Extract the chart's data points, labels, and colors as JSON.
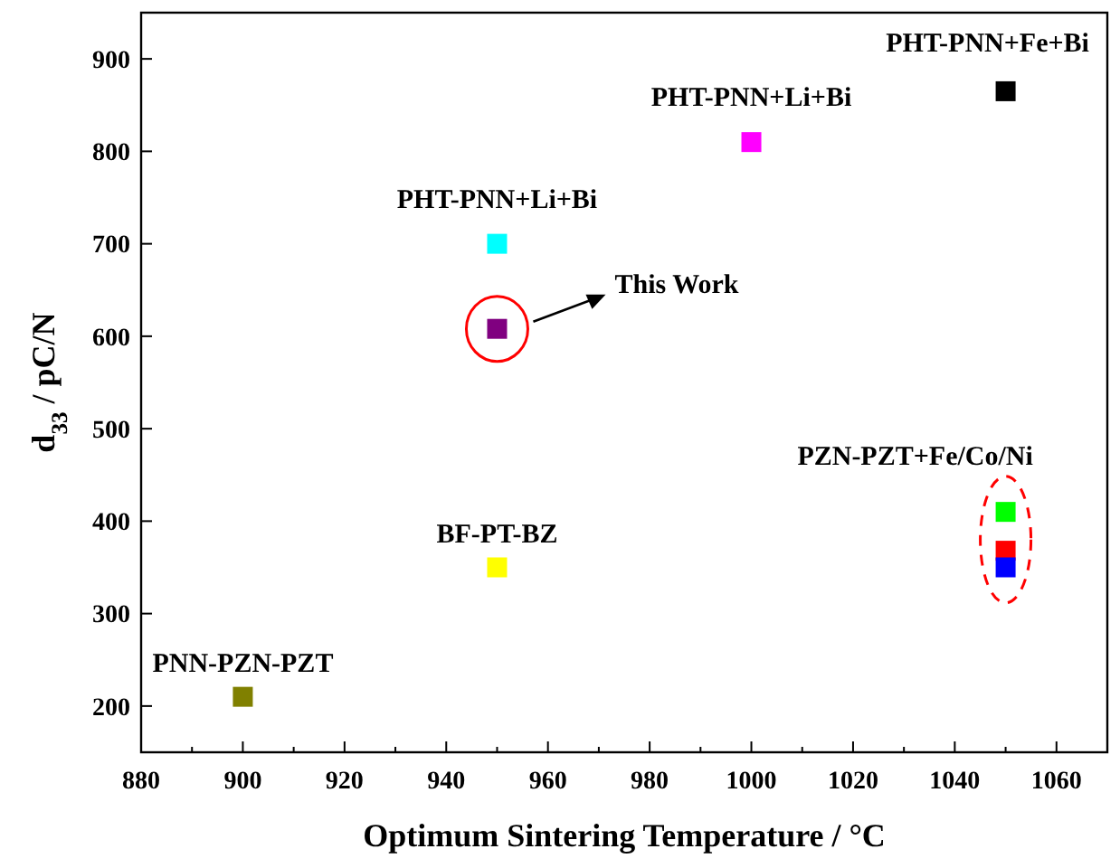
{
  "chart_data": {
    "type": "scatter",
    "xlabel": "Optimum Sintering Temperature / °C",
    "ylabel": "d$_{33}$ / pC/N",
    "x": [
      900,
      950,
      950,
      950,
      1000,
      1050,
      1050,
      1050,
      1050
    ],
    "values": [
      210,
      350,
      608,
      700,
      810,
      865,
      410,
      368,
      350
    ],
    "colors": [
      "#808000",
      "#ffff00",
      "#800080",
      "#00ffff",
      "#ff00ff",
      "#000000",
      "#00ff00",
      "#ff0000",
      "#0000ff"
    ],
    "marker": "square",
    "xlim": [
      880,
      1070
    ],
    "xticks": [
      880,
      {
        "value": 890,
        "label": null
      },
      900,
      {
        "value": 910,
        "label": null
      },
      920,
      {
        "value": 930,
        "label": null
      },
      940,
      {
        "value": 950,
        "label": null
      },
      960,
      {
        "value": 970,
        "label": null
      },
      980,
      {
        "value": 990,
        "label": null
      },
      1000,
      {
        "value": 1010,
        "label": null
      },
      1020,
      {
        "value": 1030,
        "label": null
      },
      1040,
      {
        "value": 1050,
        "label": null
      },
      1060
    ],
    "ylim": [
      150,
      950
    ],
    "yticks": [
      200,
      300,
      400,
      500,
      600,
      700,
      800,
      900
    ],
    "grid": false,
    "annotations": [
      {
        "text": "PNN-PZN-PZT",
        "x": 900,
        "y": 210
      },
      {
        "text": "BF-PT-BZ",
        "x": 950,
        "y": 350
      },
      "This Work",
      {
        "text": "PHT-PNN+Li+Bi",
        "x": 950,
        "y": 700
      },
      {
        "text": "PHT-PNN+Li+Bi",
        "x": 1000,
        "y": 810
      },
      {
        "text": "PHT-PNN+Fe+Bi",
        "x": 1050,
        "y": 865
      },
      {
        "text": "PZN-PZT+Fe/Co/Ni",
        "x": 1050,
        "y": 410
      }
    ]
  }
}
